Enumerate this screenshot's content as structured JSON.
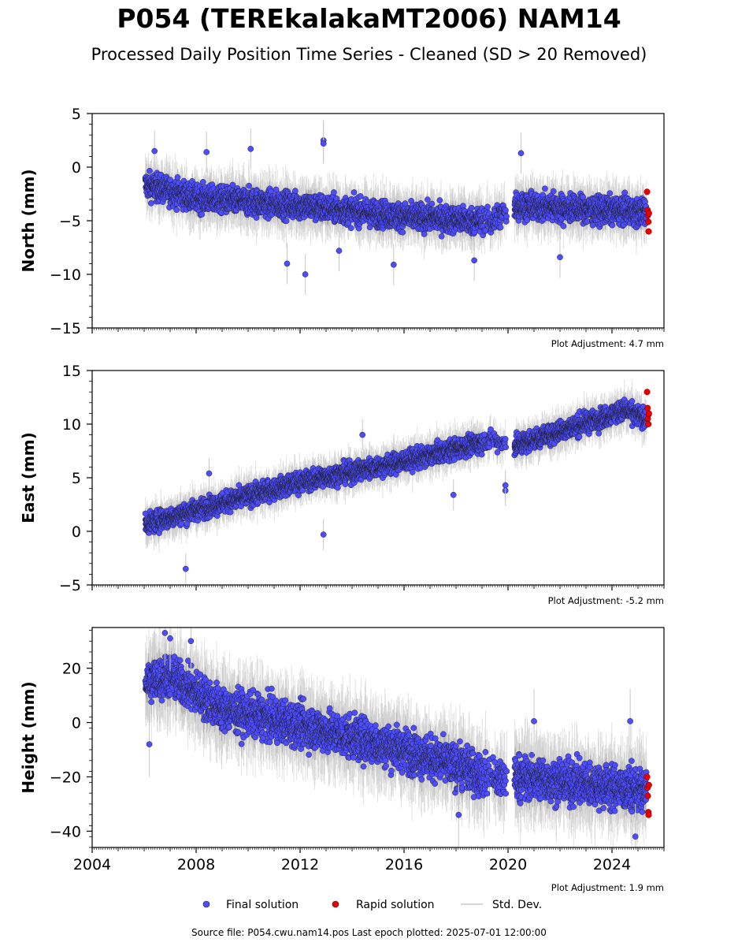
{
  "header": {
    "title": "P054 (TEREkalakaMT2006) NAM14",
    "subtitle": "Processed Daily Position Time Series - Cleaned (SD > 20 Removed)"
  },
  "footer": {
    "source": "Source file: P054.cwu.nam14.pos  Last epoch plotted: 2025-07-01 12:00:00"
  },
  "legend": {
    "final_label": "Final solution",
    "rapid_label": "Rapid solution",
    "std_label": "Std. Dev."
  },
  "colors": {
    "final": "#4d4dff",
    "rapid": "#e60000",
    "stddev": "#c8c8c8"
  },
  "chart_data": [
    {
      "type": "scatter",
      "ylabel": "North (mm)",
      "ylim": [
        -15,
        5
      ],
      "yticks": [
        -15,
        -10,
        -5,
        0,
        5
      ],
      "xlim": [
        2004,
        2026
      ],
      "adjustment": "Plot Adjustment: 4.7 mm",
      "final_trend": [
        [
          2006.0,
          -1.6
        ],
        [
          2008.0,
          -2.9
        ],
        [
          2012.0,
          -3.6
        ],
        [
          2016.0,
          -4.6
        ],
        [
          2019.3,
          -5.1
        ],
        [
          2020.3,
          -3.6
        ],
        [
          2025.2,
          -4.2
        ]
      ],
      "final_noise": 1.2,
      "gaps": [
        [
          2019.95,
          2020.25
        ]
      ],
      "outliers": [
        [
          2006.4,
          1.5
        ],
        [
          2008.4,
          1.4
        ],
        [
          2010.1,
          1.7
        ],
        [
          2012.9,
          2.5
        ],
        [
          2012.9,
          2.2
        ],
        [
          2020.5,
          1.3
        ],
        [
          2012.2,
          -10.0
        ],
        [
          2013.5,
          -7.8
        ],
        [
          2015.6,
          -9.1
        ],
        [
          2011.5,
          -9.0
        ],
        [
          2018.7,
          -8.7
        ],
        [
          2022.0,
          -8.4
        ]
      ],
      "rapid": [
        [
          2025.35,
          -2.3
        ],
        [
          2025.37,
          -4.0
        ],
        [
          2025.38,
          -4.5
        ],
        [
          2025.4,
          -5.1
        ],
        [
          2025.41,
          -6.0
        ],
        [
          2025.42,
          -4.3
        ]
      ]
    },
    {
      "type": "scatter",
      "ylabel": "East (mm)",
      "ylim": [
        -5,
        15
      ],
      "yticks": [
        -5,
        0,
        5,
        10,
        15
      ],
      "xlim": [
        2004,
        2026
      ],
      "adjustment": "Plot Adjustment: -5.2 mm",
      "final_trend": [
        [
          2006.0,
          0.6
        ],
        [
          2008.0,
          2.0
        ],
        [
          2012.0,
          4.6
        ],
        [
          2016.0,
          6.5
        ],
        [
          2019.3,
          8.5
        ],
        [
          2020.3,
          8.0
        ],
        [
          2024.5,
          11.3
        ],
        [
          2025.3,
          10.5
        ]
      ],
      "final_noise": 0.9,
      "gaps": [
        [
          2019.95,
          2020.25
        ]
      ],
      "outliers": [
        [
          2007.6,
          -3.5
        ],
        [
          2008.5,
          5.4
        ],
        [
          2012.9,
          -0.3
        ],
        [
          2014.4,
          9.0
        ],
        [
          2017.9,
          3.4
        ],
        [
          2019.9,
          3.8
        ],
        [
          2019.9,
          4.3
        ]
      ],
      "rapid": [
        [
          2025.35,
          13.0
        ],
        [
          2025.37,
          11.5
        ],
        [
          2025.38,
          10.5
        ],
        [
          2025.4,
          10.0
        ],
        [
          2025.41,
          10.9
        ],
        [
          2025.42,
          11.0
        ]
      ]
    },
    {
      "type": "scatter",
      "ylabel": "Height (mm)",
      "ylim": [
        -46,
        35
      ],
      "yticks": [
        -40,
        -20,
        0,
        20
      ],
      "xlim": [
        2004,
        2026
      ],
      "xticks": [
        2004,
        2008,
        2012,
        2016,
        2020,
        2024
      ],
      "adjustment": "Plot Adjustment: 1.9 mm",
      "final_trend": [
        [
          2006.0,
          15
        ],
        [
          2007.0,
          17
        ],
        [
          2009.0,
          5
        ],
        [
          2012.0,
          -1
        ],
        [
          2016.0,
          -10
        ],
        [
          2019.3,
          -20
        ],
        [
          2020.3,
          -20
        ],
        [
          2025.2,
          -25
        ]
      ],
      "final_noise": 7.5,
      "gaps": [
        [
          2019.95,
          2020.25
        ]
      ],
      "outliers": [
        [
          2006.8,
          33
        ],
        [
          2007.0,
          31
        ],
        [
          2007.8,
          30
        ],
        [
          2006.2,
          -8
        ],
        [
          2018.1,
          -34
        ],
        [
          2024.7,
          0.5
        ],
        [
          2024.9,
          -42
        ],
        [
          2021.0,
          0.5
        ]
      ],
      "rapid": [
        [
          2025.35,
          -20
        ],
        [
          2025.37,
          -24
        ],
        [
          2025.38,
          -27
        ],
        [
          2025.4,
          -33
        ],
        [
          2025.41,
          -34
        ],
        [
          2025.42,
          -23
        ]
      ]
    }
  ]
}
